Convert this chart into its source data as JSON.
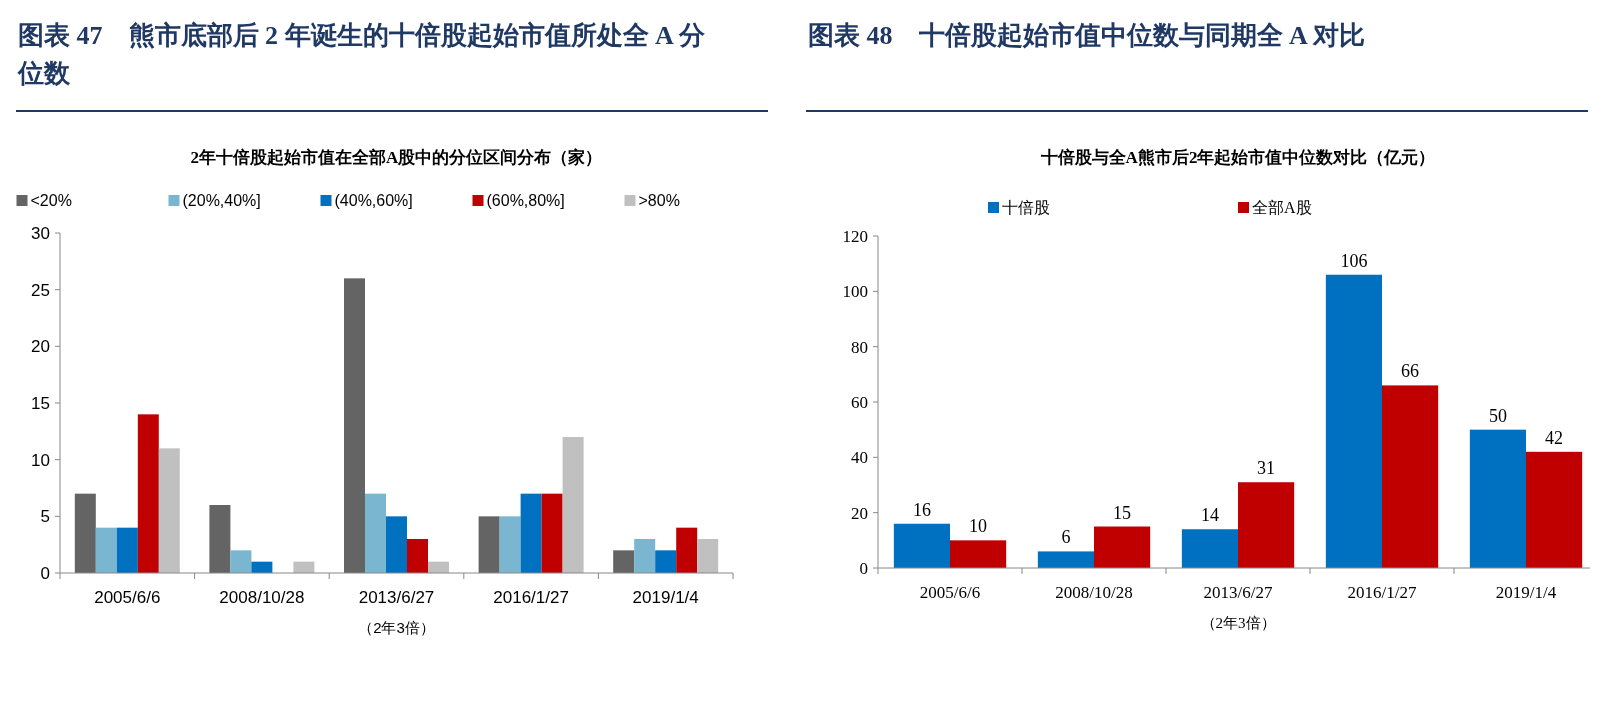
{
  "chart_data": [
    {
      "type": "bar",
      "title": "图表 47　熊市底部后 2 年诞生的十倍股起始市值所处全 A 分位数",
      "subtitle": "2年十倍股起始市值在全部A股中的分位区间分布（家）",
      "xlabel": "（2年3倍）",
      "categories": [
        "2005/6/6",
        "2008/10/28",
        "2013/6/27",
        "2016/1/27",
        "2019/1/4"
      ],
      "series": [
        {
          "name": "<20%",
          "color": "#646464",
          "values": [
            7,
            6,
            26,
            5,
            2
          ]
        },
        {
          "name": "(20%,40%]",
          "color": "#7ab6d0",
          "values": [
            4,
            2,
            7,
            5,
            3
          ]
        },
        {
          "name": "(40%,60%]",
          "color": "#0070c0",
          "values": [
            4,
            1,
            5,
            7,
            2
          ]
        },
        {
          "name": "(60%,80%]",
          "color": "#c00000",
          "values": [
            14,
            0,
            3,
            7,
            4
          ]
        },
        {
          "name": ">80%",
          "color": "#c0c0c0",
          "values": [
            11,
            1,
            1,
            12,
            3
          ]
        }
      ],
      "ylim": [
        0,
        30
      ],
      "yticks": [
        0,
        5,
        10,
        15,
        20,
        25,
        30
      ],
      "legend": "top"
    },
    {
      "type": "bar",
      "title": "图表 48　十倍股起始市值中位数与同期全 A 对比",
      "subtitle": "十倍股与全A熊市后2年起始市值中位数对比（亿元）",
      "xlabel": "（2年3倍）",
      "categories": [
        "2005/6/6",
        "2008/10/28",
        "2013/6/27",
        "2016/1/27",
        "2019/1/4"
      ],
      "series": [
        {
          "name": "十倍股",
          "color": "#0070c0",
          "values": [
            16,
            6,
            14,
            106,
            50
          ]
        },
        {
          "name": "全部A股",
          "color": "#c00000",
          "values": [
            10,
            15,
            31,
            66,
            42
          ]
        }
      ],
      "ylim": [
        0,
        120
      ],
      "yticks": [
        0,
        20,
        40,
        60,
        80,
        100,
        120
      ],
      "legend": "top",
      "data_labels": true
    }
  ]
}
